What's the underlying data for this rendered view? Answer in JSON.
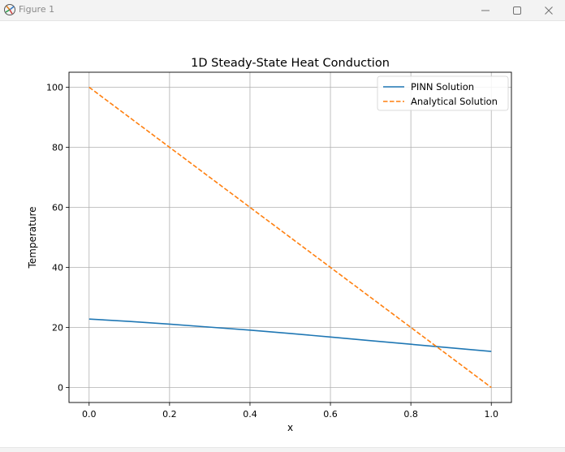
{
  "window": {
    "title": "Figure 1",
    "icon": "matplotlib-icon",
    "controls": {
      "minimize": "minimize-icon",
      "maximize": "maximize-icon",
      "close": "close-icon"
    }
  },
  "colors": {
    "pinn": "#1f77b4",
    "analytical": "#ff7f0e",
    "grid": "#b0b0b0",
    "axes": "#000000"
  },
  "chart_data": {
    "type": "line",
    "title": "1D Steady-State Heat Conduction",
    "xlabel": "x",
    "ylabel": "Temperature",
    "xlim": [
      -0.05,
      1.05
    ],
    "ylim": [
      -5,
      105
    ],
    "xticks": [
      0.0,
      0.2,
      0.4,
      0.6,
      0.8,
      1.0
    ],
    "xtick_labels": [
      "0.0",
      "0.2",
      "0.4",
      "0.6",
      "0.8",
      "1.0"
    ],
    "yticks": [
      0,
      20,
      40,
      60,
      80,
      100
    ],
    "ytick_labels": [
      "0",
      "20",
      "40",
      "60",
      "80",
      "100"
    ],
    "grid": true,
    "legend_position": "top-right",
    "series": [
      {
        "name": "PINN Solution",
        "style": "solid",
        "color": "#1f77b4",
        "x": [
          0.0,
          0.1,
          0.2,
          0.3,
          0.4,
          0.5,
          0.6,
          0.7,
          0.8,
          0.9,
          1.0
        ],
        "y": [
          22.8,
          22.0,
          21.1,
          20.1,
          19.1,
          18.0,
          16.8,
          15.6,
          14.4,
          13.2,
          12.0
        ]
      },
      {
        "name": "Analytical Solution",
        "style": "dashed",
        "color": "#ff7f0e",
        "x": [
          0.0,
          1.0
        ],
        "y": [
          100,
          0
        ]
      }
    ]
  }
}
